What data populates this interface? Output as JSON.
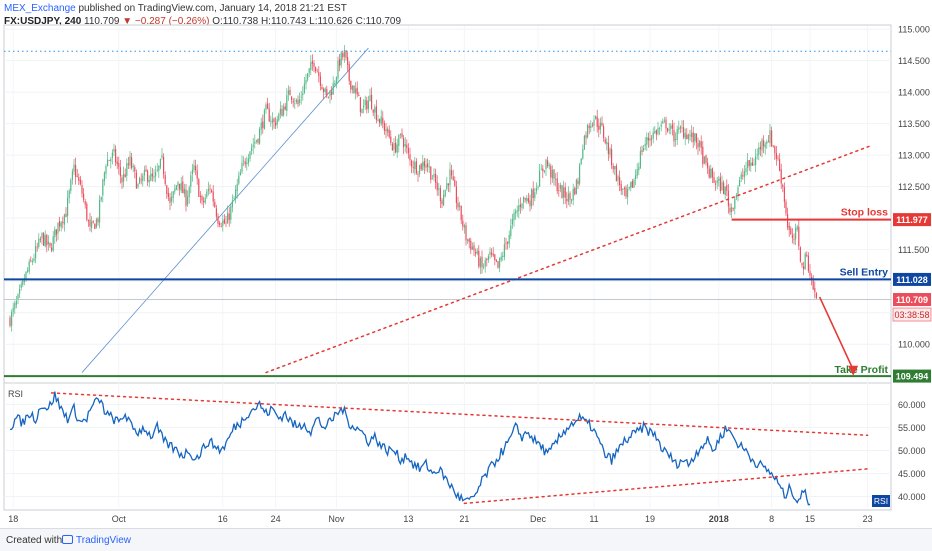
{
  "header": {
    "user": "MEX_Exchange",
    "published": "published on TradingView.com, January 14, 2018 21:21 EST",
    "symbol": "FX:USDJPY, 240",
    "last": "110.709",
    "arrow": "▼",
    "change": "−0.287 (−0.26%)",
    "ohlc": "O:110.738 H:110.743 L:110.626 C:110.709"
  },
  "footer": {
    "created": "Created with",
    "brand": "TradingView"
  },
  "colors": {
    "up": "#53b987",
    "down": "#eb4d5c",
    "rsi": "#1565c0",
    "sell": "#0d47a1",
    "stop": "#e53935",
    "tp": "#2e7d32"
  },
  "chart_data": [
    {
      "type": "candlestick",
      "ylim": [
        109.4,
        115.05
      ],
      "yticks": [
        "115.000",
        "114.500",
        "114.000",
        "113.500",
        "113.000",
        "112.500",
        "112.000",
        "111.500",
        "111.000",
        "110.500",
        "110.000"
      ],
      "xticks": [
        {
          "label": "18",
          "bar": 2
        },
        {
          "label": "Oct",
          "bar": 68
        },
        {
          "label": "16",
          "bar": 133
        },
        {
          "label": "24",
          "bar": 166
        },
        {
          "label": "Nov",
          "bar": 204
        },
        {
          "label": "13",
          "bar": 249
        },
        {
          "label": "21",
          "bar": 284
        },
        {
          "label": "Dec",
          "bar": 330
        },
        {
          "label": "11",
          "bar": 365
        },
        {
          "label": "19",
          "bar": 400
        },
        {
          "label": "2018",
          "bar": 443
        },
        {
          "label": "8",
          "bar": 476
        },
        {
          "label": "15",
          "bar": 500
        },
        {
          "label": "23",
          "bar": 536
        }
      ],
      "anchors": [
        [
          0,
          110.4
        ],
        [
          5,
          110.7
        ],
        [
          10,
          111.1
        ],
        [
          15,
          111.4
        ],
        [
          20,
          111.7
        ],
        [
          25,
          111.5
        ],
        [
          30,
          111.9
        ],
        [
          35,
          112.1
        ],
        [
          40,
          112.8
        ],
        [
          45,
          112.4
        ],
        [
          50,
          111.8
        ],
        [
          55,
          112.0
        ],
        [
          60,
          112.9
        ],
        [
          65,
          113.0
        ],
        [
          70,
          112.6
        ],
        [
          75,
          112.9
        ],
        [
          80,
          112.5
        ],
        [
          85,
          112.7
        ],
        [
          90,
          112.6
        ],
        [
          95,
          112.9
        ],
        [
          100,
          112.2
        ],
        [
          105,
          112.6
        ],
        [
          110,
          112.3
        ],
        [
          115,
          112.8
        ],
        [
          120,
          112.2
        ],
        [
          125,
          112.5
        ],
        [
          130,
          112.0
        ],
        [
          135,
          111.9
        ],
        [
          140,
          112.3
        ],
        [
          145,
          112.8
        ],
        [
          150,
          113.1
        ],
        [
          155,
          113.3
        ],
        [
          160,
          113.7
        ],
        [
          165,
          113.5
        ],
        [
          170,
          113.7
        ],
        [
          175,
          114.0
        ],
        [
          180,
          113.8
        ],
        [
          185,
          114.2
        ],
        [
          190,
          114.5
        ],
        [
          194,
          114.2
        ],
        [
          198,
          113.9
        ],
        [
          202,
          114.1
        ],
        [
          206,
          114.5
        ],
        [
          209,
          114.6
        ],
        [
          212,
          114.2
        ],
        [
          216,
          114.0
        ],
        [
          220,
          113.7
        ],
        [
          225,
          113.9
        ],
        [
          230,
          113.6
        ],
        [
          235,
          113.4
        ],
        [
          240,
          113.1
        ],
        [
          245,
          113.3
        ],
        [
          250,
          112.9
        ],
        [
          255,
          112.8
        ],
        [
          260,
          112.9
        ],
        [
          265,
          112.6
        ],
        [
          270,
          112.3
        ],
        [
          275,
          112.7
        ],
        [
          280,
          112.2
        ],
        [
          285,
          111.7
        ],
        [
          290,
          111.5
        ],
        [
          295,
          111.2
        ],
        [
          300,
          111.4
        ],
        [
          305,
          111.2
        ],
        [
          310,
          111.6
        ],
        [
          315,
          112.0
        ],
        [
          320,
          112.3
        ],
        [
          325,
          112.3
        ],
        [
          330,
          112.6
        ],
        [
          335,
          112.9
        ],
        [
          340,
          112.6
        ],
        [
          345,
          112.4
        ],
        [
          350,
          112.3
        ],
        [
          355,
          112.6
        ],
        [
          358,
          113.2
        ],
        [
          362,
          113.5
        ],
        [
          365,
          113.6
        ],
        [
          370,
          113.4
        ],
        [
          375,
          113.0
        ],
        [
          380,
          112.6
        ],
        [
          385,
          112.3
        ],
        [
          390,
          112.6
        ],
        [
          395,
          113.1
        ],
        [
          400,
          113.3
        ],
        [
          405,
          113.4
        ],
        [
          410,
          113.5
        ],
        [
          415,
          113.3
        ],
        [
          420,
          113.4
        ],
        [
          425,
          113.3
        ],
        [
          430,
          113.2
        ],
        [
          435,
          112.8
        ],
        [
          440,
          112.6
        ],
        [
          445,
          112.5
        ],
        [
          448,
          112.4
        ],
        [
          450,
          112.1
        ],
        [
          455,
          112.5
        ],
        [
          460,
          112.8
        ],
        [
          465,
          112.9
        ],
        [
          470,
          113.2
        ],
        [
          475,
          113.3
        ],
        [
          480,
          112.9
        ],
        [
          483,
          112.5
        ],
        [
          486,
          111.9
        ],
        [
          489,
          111.6
        ],
        [
          492,
          111.8
        ],
        [
          495,
          111.2
        ],
        [
          498,
          111.4
        ],
        [
          501,
          111.0
        ],
        [
          504,
          110.7
        ]
      ],
      "price_labels": [
        {
          "name": "Stop loss",
          "value": 111.977
        },
        {
          "name": "Sell Entry",
          "value": 111.028
        },
        {
          "name": "last",
          "value": 110.709,
          "countdown": "03:38:58"
        },
        {
          "name": "Take Profit",
          "value": 109.494
        }
      ],
      "dotted_high": 114.65,
      "trendline": {
        "from": [
          160,
          109.55
        ],
        "to": [
          538,
          113.15
        ]
      },
      "trade_path": {
        "from": [
          506,
          110.75
        ],
        "to": [
          527,
          109.5
        ]
      },
      "fan_line": {
        "from": [
          45,
          109.55
        ],
        "to": [
          224,
          114.7
        ]
      }
    },
    {
      "type": "line",
      "name": "RSI",
      "ylim": [
        37.5,
        64
      ],
      "yticks": [
        "60.000",
        "55.000",
        "50.000",
        "45.000",
        "40.000"
      ],
      "anchors": [
        [
          0,
          55
        ],
        [
          4,
          57
        ],
        [
          8,
          56
        ],
        [
          12,
          58
        ],
        [
          16,
          57
        ],
        [
          20,
          60
        ],
        [
          24,
          59
        ],
        [
          28,
          62
        ],
        [
          32,
          59
        ],
        [
          36,
          57
        ],
        [
          40,
          59
        ],
        [
          44,
          56
        ],
        [
          48,
          57
        ],
        [
          52,
          60
        ],
        [
          56,
          61
        ],
        [
          60,
          58
        ],
        [
          64,
          57
        ],
        [
          68,
          56
        ],
        [
          72,
          58
        ],
        [
          76,
          55
        ],
        [
          80,
          54
        ],
        [
          84,
          55
        ],
        [
          88,
          53
        ],
        [
          92,
          55
        ],
        [
          96,
          52
        ],
        [
          100,
          51
        ],
        [
          104,
          50
        ],
        [
          108,
          49
        ],
        [
          112,
          50
        ],
        [
          116,
          48
        ],
        [
          120,
          50
        ],
        [
          124,
          52
        ],
        [
          128,
          51
        ],
        [
          132,
          50
        ],
        [
          136,
          52
        ],
        [
          140,
          55
        ],
        [
          144,
          56
        ],
        [
          148,
          58
        ],
        [
          152,
          59
        ],
        [
          156,
          60
        ],
        [
          160,
          58
        ],
        [
          164,
          59
        ],
        [
          168,
          57
        ],
        [
          172,
          58
        ],
        [
          176,
          56
        ],
        [
          180,
          55
        ],
        [
          184,
          56
        ],
        [
          188,
          54
        ],
        [
          192,
          57
        ],
        [
          196,
          55
        ],
        [
          200,
          56
        ],
        [
          204,
          58
        ],
        [
          208,
          59
        ],
        [
          212,
          56
        ],
        [
          216,
          55
        ],
        [
          220,
          54
        ],
        [
          224,
          52
        ],
        [
          228,
          53
        ],
        [
          232,
          51
        ],
        [
          236,
          50
        ],
        [
          240,
          50
        ],
        [
          244,
          48
        ],
        [
          248,
          49
        ],
        [
          252,
          47
        ],
        [
          256,
          46
        ],
        [
          260,
          47
        ],
        [
          264,
          45
        ],
        [
          268,
          46
        ],
        [
          272,
          44
        ],
        [
          276,
          42
        ],
        [
          280,
          40
        ],
        [
          284,
          39
        ],
        [
          288,
          39
        ],
        [
          292,
          41
        ],
        [
          296,
          44
        ],
        [
          300,
          46
        ],
        [
          304,
          48
        ],
        [
          308,
          50
        ],
        [
          312,
          52
        ],
        [
          316,
          55
        ],
        [
          320,
          53
        ],
        [
          324,
          54
        ],
        [
          328,
          52
        ],
        [
          332,
          51
        ],
        [
          336,
          49
        ],
        [
          340,
          51
        ],
        [
          344,
          53
        ],
        [
          348,
          55
        ],
        [
          352,
          56
        ],
        [
          356,
          57
        ],
        [
          360,
          56
        ],
        [
          364,
          55
        ],
        [
          368,
          52
        ],
        [
          372,
          49
        ],
        [
          376,
          48
        ],
        [
          380,
          50
        ],
        [
          384,
          52
        ],
        [
          388,
          53
        ],
        [
          392,
          54
        ],
        [
          396,
          55
        ],
        [
          400,
          54
        ],
        [
          404,
          53
        ],
        [
          408,
          50
        ],
        [
          412,
          49
        ],
        [
          416,
          47
        ],
        [
          420,
          48
        ],
        [
          424,
          47
        ],
        [
          428,
          49
        ],
        [
          432,
          51
        ],
        [
          436,
          52
        ],
        [
          440,
          50
        ],
        [
          444,
          53
        ],
        [
          448,
          55
        ],
        [
          452,
          53
        ],
        [
          456,
          51
        ],
        [
          460,
          50
        ],
        [
          464,
          48
        ],
        [
          468,
          47
        ],
        [
          472,
          46
        ],
        [
          476,
          45
        ],
        [
          480,
          43
        ],
        [
          484,
          40
        ],
        [
          488,
          42
        ],
        [
          492,
          39
        ],
        [
          496,
          41
        ],
        [
          500,
          38.5
        ]
      ],
      "upper_line": {
        "from": [
          26,
          62.5
        ],
        "to": [
          536,
          53.3
        ]
      },
      "lower_line": {
        "from": [
          284,
          38.5
        ],
        "to": [
          536,
          46.0
        ]
      }
    }
  ]
}
